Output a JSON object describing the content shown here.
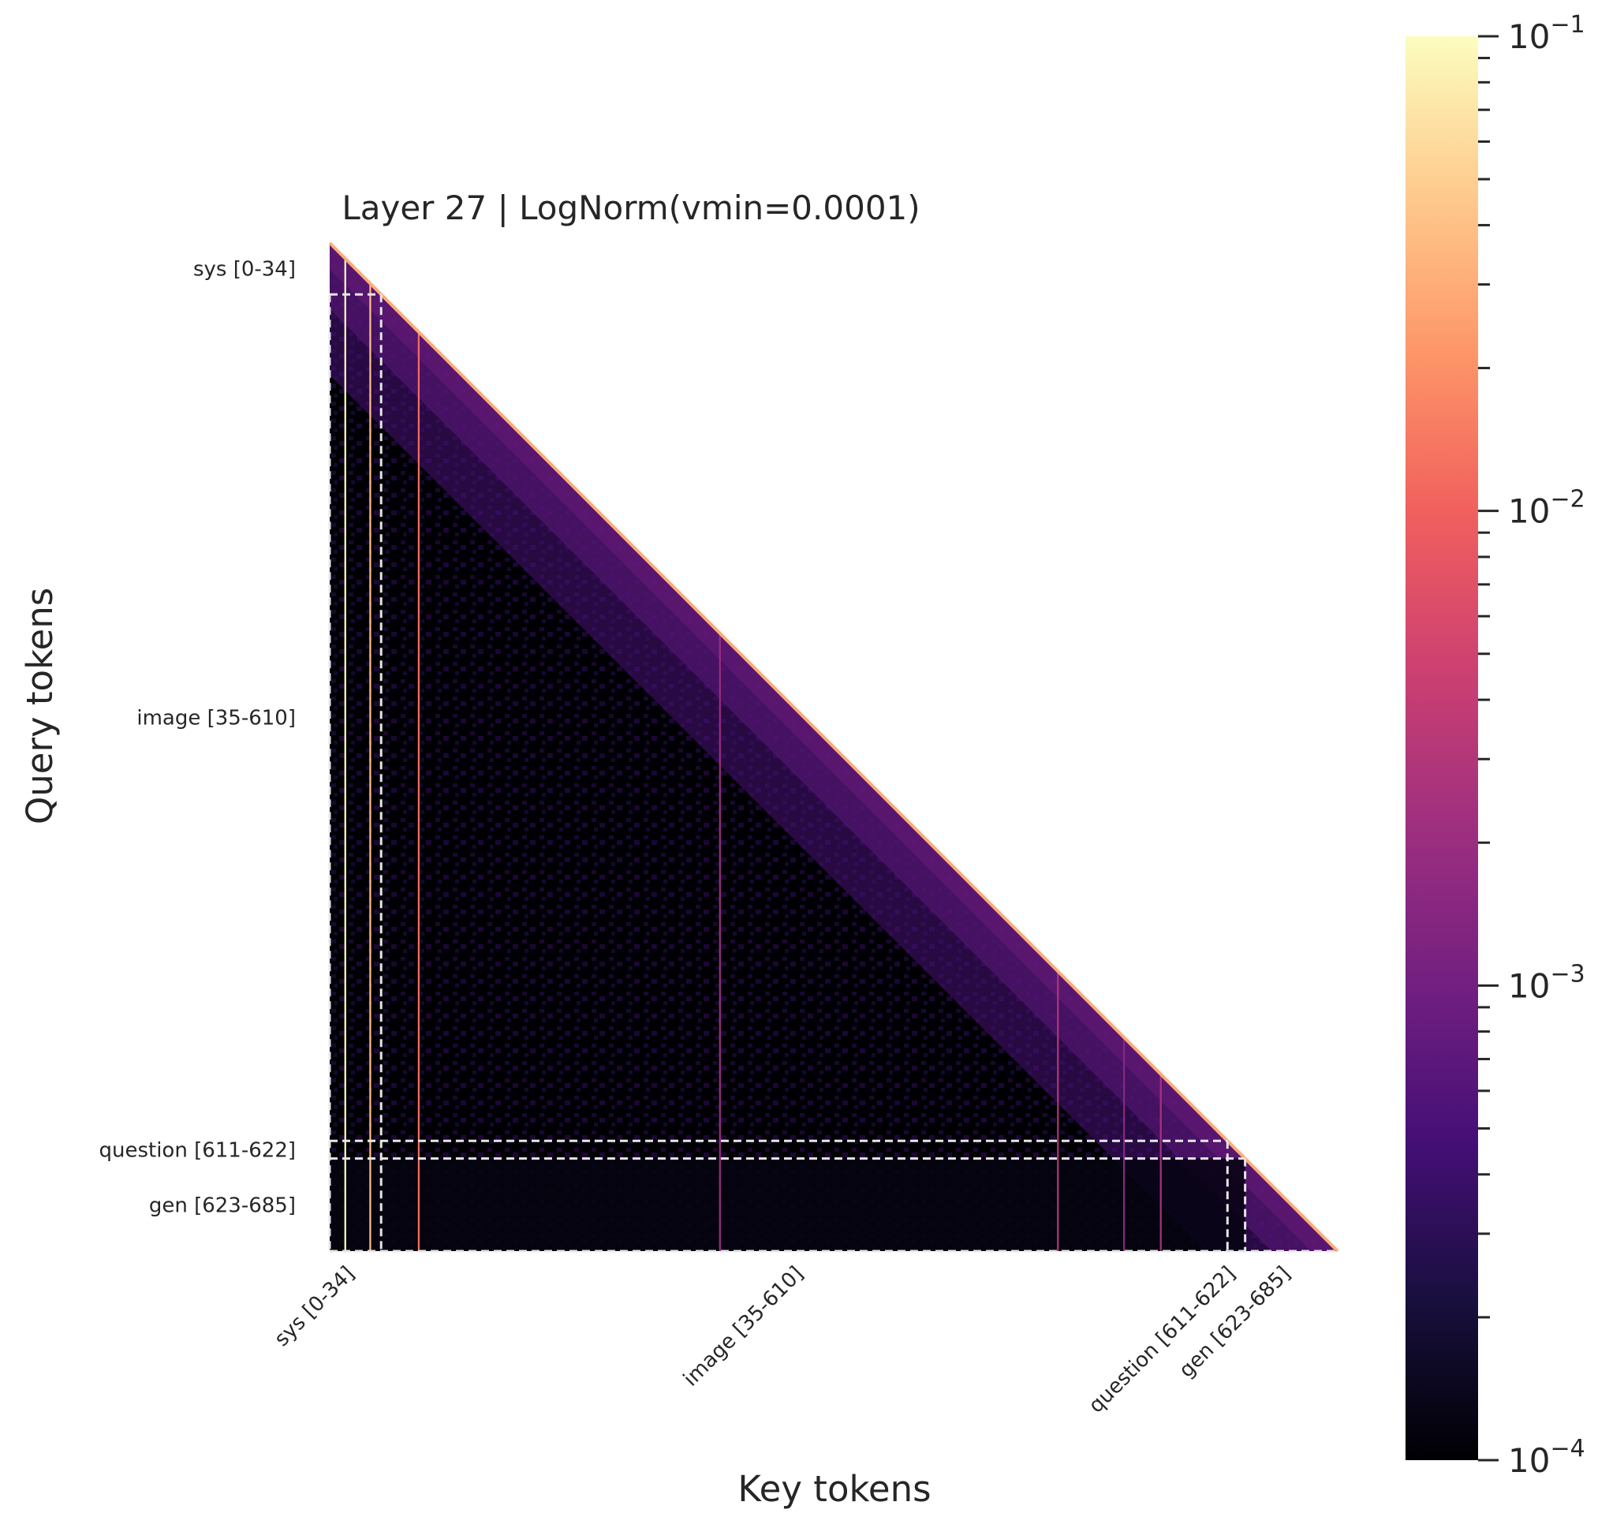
{
  "chart_data": {
    "type": "heatmap",
    "title": "Layer 27 | LogNorm(vmin=0.0001)",
    "xlabel": "Key tokens",
    "ylabel": "Query tokens",
    "n_tokens": 686,
    "mask": "lower-triangular (causal attention)",
    "segments": [
      {
        "label": "sys [0-34]",
        "start": 0,
        "end": 34
      },
      {
        "label": "image [35-610]",
        "start": 35,
        "end": 610
      },
      {
        "label": "question [611-622]",
        "start": 611,
        "end": 622
      },
      {
        "label": "gen [623-685]",
        "start": 623,
        "end": 685
      }
    ],
    "segment_boundary_style": "white dashed lines",
    "colorbar": {
      "scale": "log",
      "colormap": "magma",
      "range": [
        0.0001,
        0.1
      ],
      "ticks": [
        {
          "value": 0.1,
          "base": "10",
          "exp": "−1"
        },
        {
          "value": 0.01,
          "base": "10",
          "exp": "−2"
        },
        {
          "value": 0.001,
          "base": "10",
          "exp": "−3"
        },
        {
          "value": 0.0001,
          "base": "10",
          "exp": "−4"
        }
      ]
    },
    "highlighted_key_columns": [
      {
        "key": 10,
        "level": 0.1
      },
      {
        "key": 27,
        "level": 0.04
      },
      {
        "key": 60,
        "level": 0.012
      },
      {
        "key": 265,
        "level": 0.002
      },
      {
        "key": 495,
        "level": 0.003
      },
      {
        "key": 540,
        "level": 0.0015
      },
      {
        "key": 565,
        "level": 0.0025
      }
    ]
  },
  "colors": {
    "cmap_stops": [
      "#000004",
      "#180f3d",
      "#440f76",
      "#721f81",
      "#9e2f7f",
      "#cd4071",
      "#f1605d",
      "#fd9668",
      "#feca8d",
      "#fcfdbf"
    ],
    "boundary": "#e6e6e6"
  }
}
